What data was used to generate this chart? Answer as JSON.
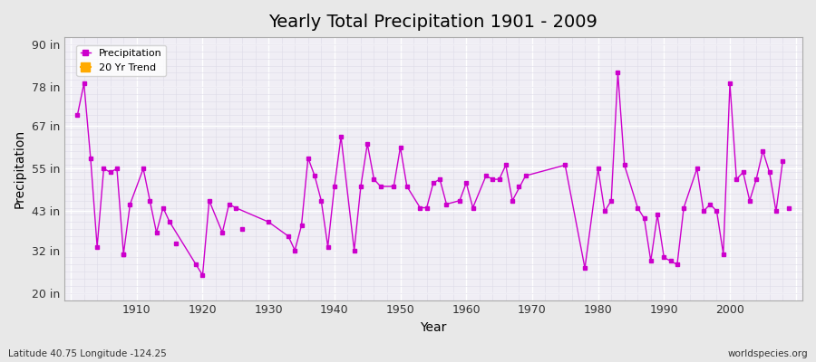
{
  "title": "Yearly Total Precipitation 1901 - 2009",
  "xlabel": "Year",
  "ylabel": "Precipitation",
  "footnote_left": "Latitude 40.75 Longitude -124.25",
  "footnote_right": "worldspecies.org",
  "years": [
    1901,
    1902,
    1903,
    1904,
    1905,
    1906,
    1907,
    1908,
    1909,
    1911,
    1912,
    1913,
    1914,
    1915,
    1919,
    1920,
    1921,
    1923,
    1924,
    1925,
    1930,
    1933,
    1934,
    1935,
    1936,
    1937,
    1938,
    1939,
    1940,
    1941,
    1943,
    1944,
    1945,
    1946,
    1947,
    1949,
    1950,
    1951,
    1953,
    1954,
    1955,
    1956,
    1957,
    1959,
    1960,
    1961,
    1963,
    1964,
    1965,
    1966,
    1967,
    1969,
    1975,
    1978,
    1980,
    1981,
    1982,
    1983,
    1984,
    1986,
    1987,
    1988,
    1989,
    1990,
    1991,
    1992,
    1993,
    1995,
    1996,
    1997,
    1998,
    1999,
    2000,
    2001,
    2002,
    2003,
    2004,
    2005,
    2006,
    2007,
    2008
  ],
  "precip": [
    70,
    79,
    58,
    33,
    55,
    54,
    55,
    31,
    45,
    55,
    46,
    37,
    44,
    40,
    28,
    25,
    46,
    37,
    45,
    44,
    40,
    36,
    32,
    39,
    58,
    53,
    46,
    33,
    50,
    64,
    32,
    50,
    62,
    52,
    50,
    50,
    61,
    50,
    44,
    44,
    51,
    52,
    45,
    46,
    51,
    44,
    53,
    52,
    52,
    56,
    46,
    53,
    56,
    27,
    55,
    43,
    46,
    82,
    56,
    44,
    41,
    29,
    42,
    30,
    29,
    28,
    44,
    55,
    43,
    45,
    43,
    31,
    79,
    52,
    54,
    46,
    52,
    60,
    54,
    43,
    57
  ],
  "isolated_years": [
    1908,
    1916,
    1926,
    1968,
    2009
  ],
  "isolated_precip": [
    31,
    34,
    38,
    50,
    44
  ],
  "line_color": "#cc00cc",
  "trend_color": "#ffaa00",
  "bg_color": "#e8e8e8",
  "plot_bg_color": "#f0eef5",
  "grid_major_color": "#ffffff",
  "grid_minor_color": "#dddbe8",
  "yticks": [
    20,
    32,
    43,
    55,
    67,
    78,
    90
  ],
  "ytick_labels": [
    "20 in",
    "32 in",
    "43 in",
    "55 in",
    "67 in",
    "78 in",
    "90 in"
  ],
  "ylim": [
    18,
    92
  ],
  "xlim": [
    1899,
    2011
  ]
}
